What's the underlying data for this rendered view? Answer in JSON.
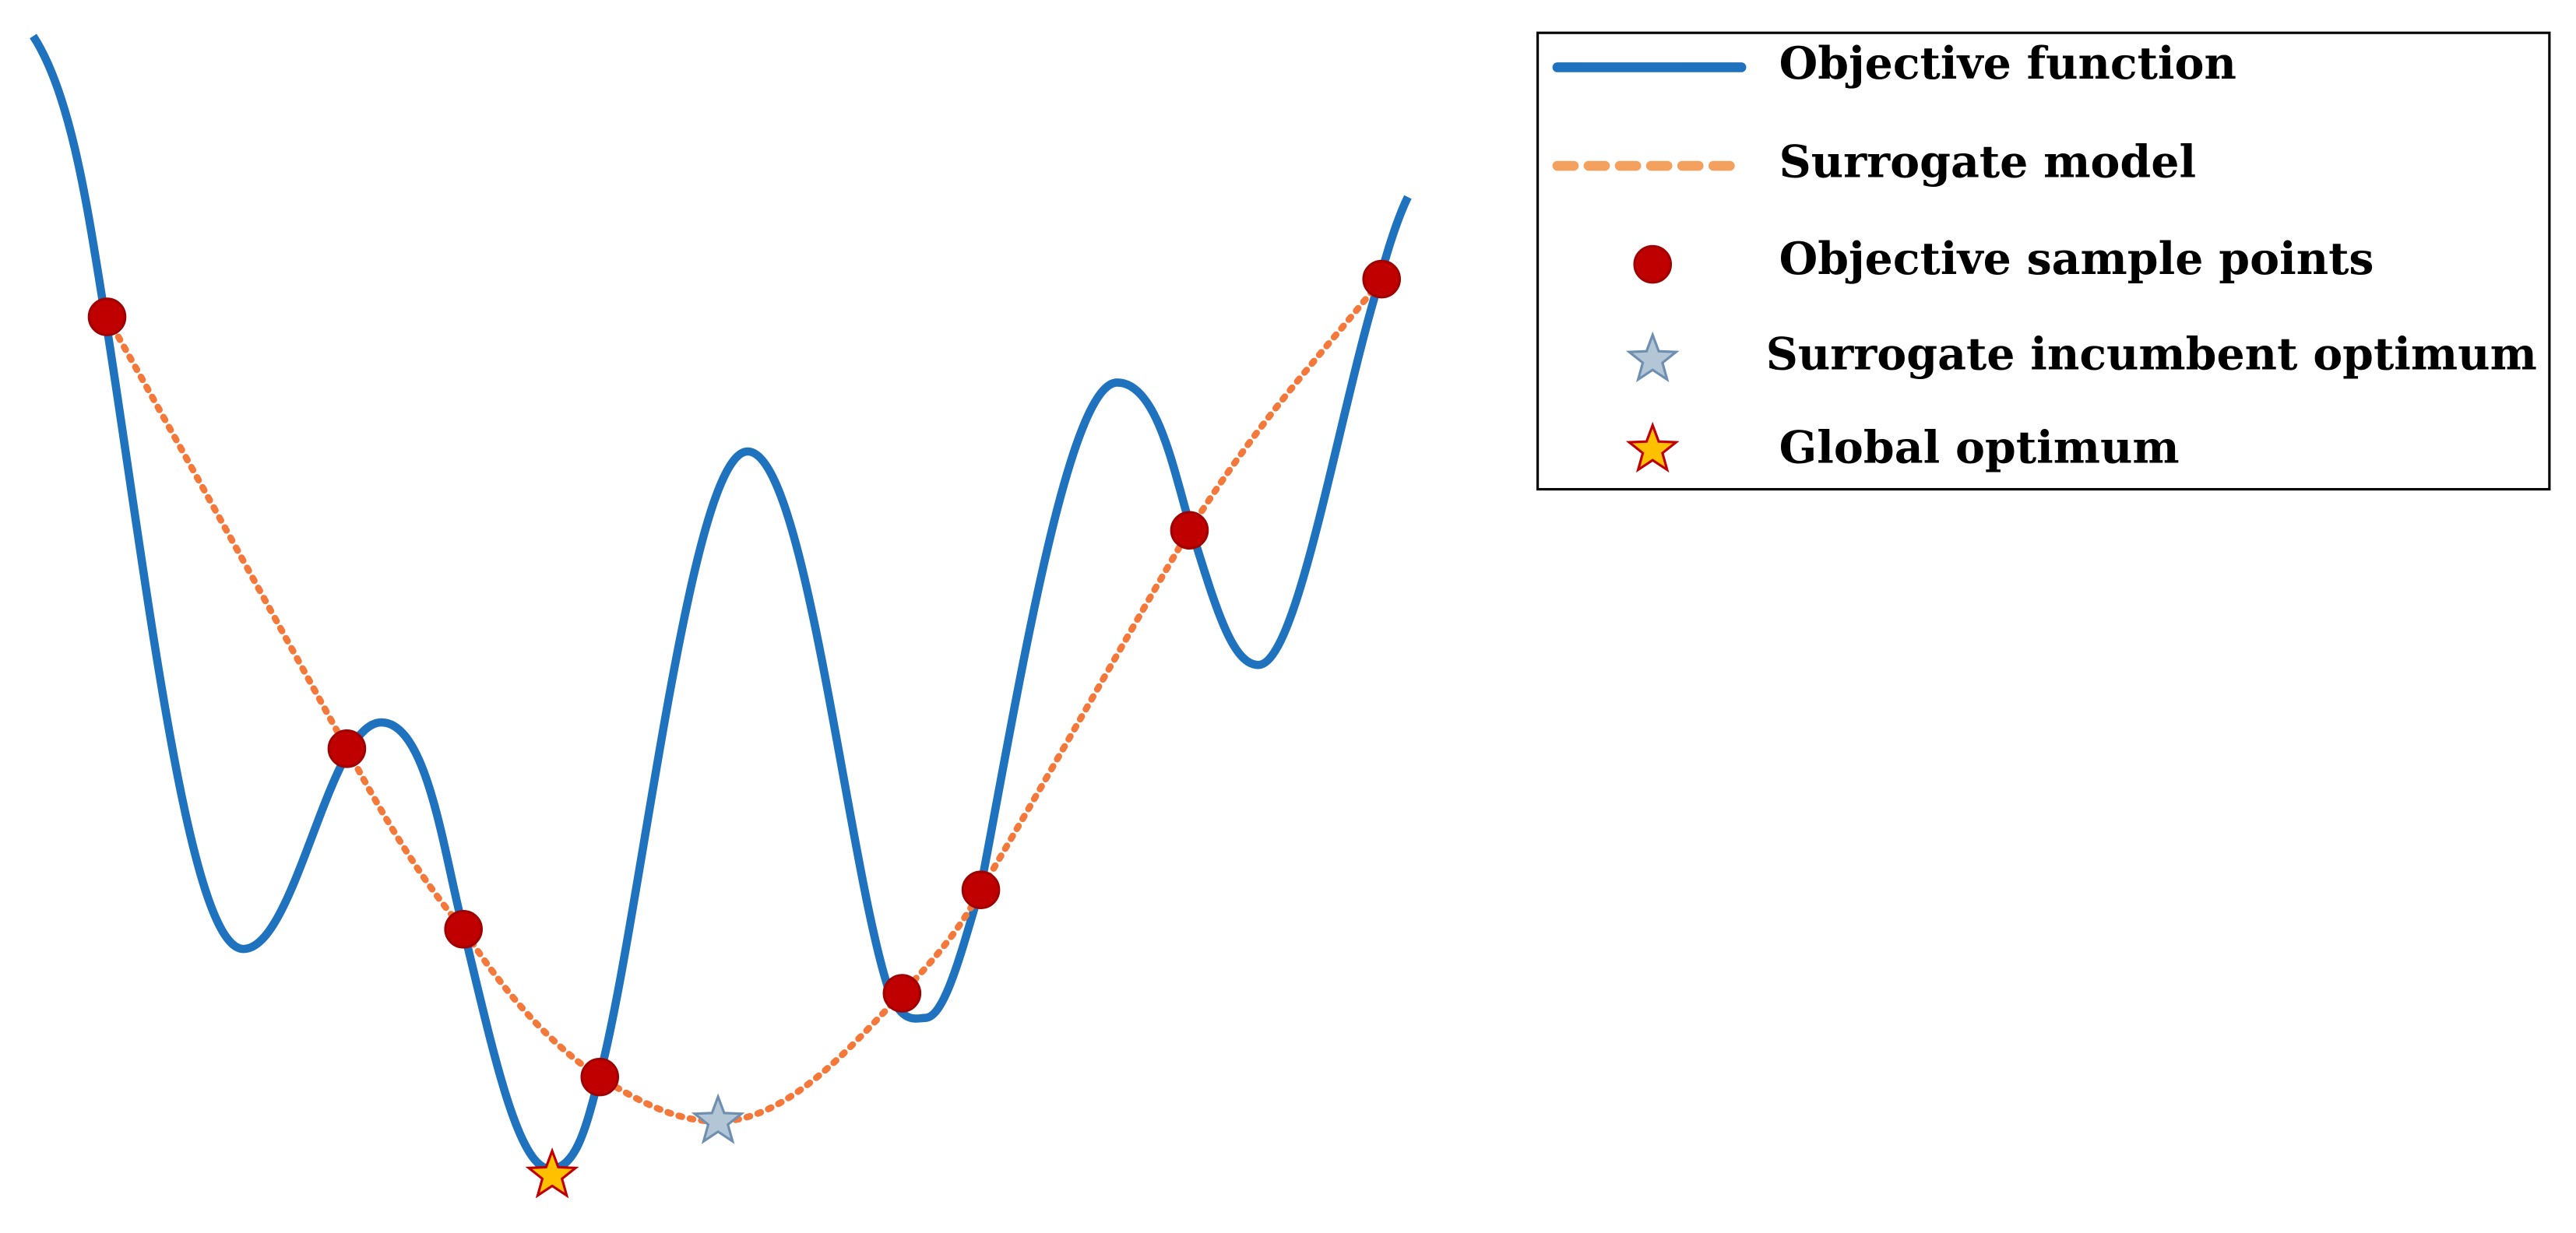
{
  "legend": {
    "items": [
      {
        "label": "Objective function"
      },
      {
        "label": "Surrogate model"
      },
      {
        "label": "Objective sample points"
      },
      {
        "label": "Surrogate incumbent optimum"
      },
      {
        "label": "Global optimum"
      }
    ]
  }
}
